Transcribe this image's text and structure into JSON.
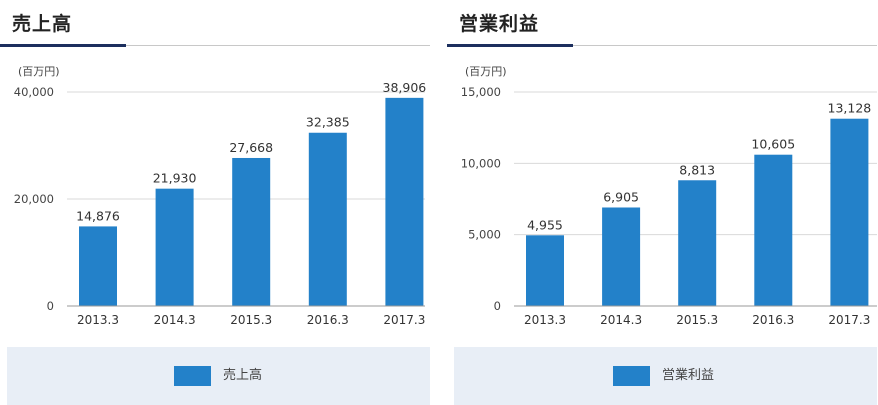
{
  "chart_data": [
    {
      "type": "bar",
      "title": "売上高",
      "unit_label": "(百万円)",
      "categories": [
        "2013.3",
        "2014.3",
        "2015.3",
        "2016.3",
        "2017.3"
      ],
      "series": [
        {
          "name": "売上高",
          "values": [
            14876,
            21930,
            27668,
            32385,
            38906
          ]
        }
      ],
      "data_labels": [
        "14,876",
        "21,930",
        "27,668",
        "32,385",
        "38,906"
      ],
      "yticks": [
        0,
        20000,
        40000
      ],
      "ytick_labels": [
        "0",
        "20,000",
        "40,000"
      ],
      "ylim": [
        0,
        40000
      ],
      "grid": true,
      "legend": "bottom",
      "color": "#2381c9"
    },
    {
      "type": "bar",
      "title": "営業利益",
      "unit_label": "(百万円)",
      "categories": [
        "2013.3",
        "2014.3",
        "2015.3",
        "2016.3",
        "2017.3"
      ],
      "series": [
        {
          "name": "営業利益",
          "values": [
            4955,
            6905,
            8813,
            10605,
            13128
          ]
        }
      ],
      "data_labels": [
        "4,955",
        "6,905",
        "8,813",
        "10,605",
        "13,128"
      ],
      "yticks": [
        0,
        5000,
        10000,
        15000
      ],
      "ytick_labels": [
        "0",
        "5,000",
        "10,000",
        "15,000"
      ],
      "ylim": [
        0,
        15000
      ],
      "grid": true,
      "legend": "bottom",
      "color": "#2381c9"
    }
  ]
}
